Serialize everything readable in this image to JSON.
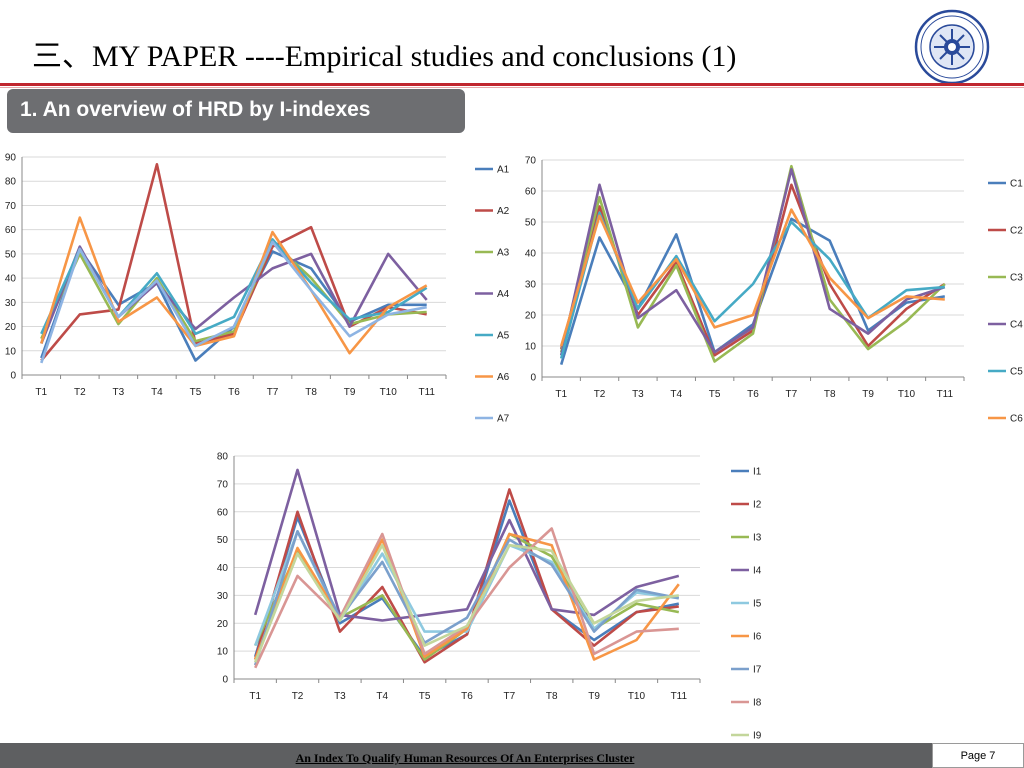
{
  "header": {
    "title": "三、MY PAPER ----Empirical studies and conclusions (1)",
    "subtitle": "1. An overview of HRD by I-indexes",
    "accent_color": "#c0262e",
    "logo_icon": "university-seal-logo"
  },
  "footer": {
    "text": "An Index To Qualify Human Resources Of An Enterprises Cluster",
    "page": "Page 7"
  },
  "chart_data": [
    {
      "type": "line",
      "categories": [
        "T1",
        "T2",
        "T3",
        "T4",
        "T5",
        "T6",
        "T7",
        "T8",
        "T9",
        "T10",
        "T11"
      ],
      "ylim": [
        0,
        90
      ],
      "yticks": [
        0,
        10,
        20,
        30,
        40,
        50,
        60,
        70,
        80,
        90
      ],
      "grid": true,
      "legend": "right",
      "series": [
        {
          "name": "A1",
          "color": "#4a7ebb",
          "values": [
            7,
            52,
            29,
            38,
            6,
            20,
            51,
            44,
            22,
            29,
            29
          ]
        },
        {
          "name": "A2",
          "color": "#be4b48",
          "values": [
            6,
            25,
            27,
            87,
            13,
            17,
            53,
            61,
            20,
            28,
            25
          ]
        },
        {
          "name": "A3",
          "color": "#98b954",
          "values": [
            15,
            50,
            21,
            40,
            14,
            18,
            55,
            40,
            21,
            25,
            26
          ]
        },
        {
          "name": "A4",
          "color": "#7d60a0",
          "values": [
            13,
            53,
            24,
            38,
            19,
            32,
            44,
            50,
            20,
            50,
            31
          ]
        },
        {
          "name": "A5",
          "color": "#46aac5",
          "values": [
            17,
            52,
            24,
            42,
            17,
            24,
            56,
            38,
            23,
            26,
            36
          ]
        },
        {
          "name": "A6",
          "color": "#f79646",
          "values": [
            13,
            65,
            22,
            32,
            12,
            16,
            59,
            35,
            9,
            28,
            37
          ]
        },
        {
          "name": "A7",
          "color": "#8eb4e3",
          "values": [
            5,
            52,
            24,
            39,
            12,
            20,
            55,
            35,
            16,
            25,
            28
          ]
        }
      ]
    },
    {
      "type": "line",
      "categories": [
        "T1",
        "T2",
        "T3",
        "T4",
        "T5",
        "T6",
        "T7",
        "T8",
        "T9",
        "T10",
        "T11"
      ],
      "ylim": [
        0,
        70
      ],
      "yticks": [
        0,
        10,
        20,
        30,
        40,
        50,
        60,
        70
      ],
      "grid": true,
      "legend": "right",
      "series": [
        {
          "name": "C1",
          "color": "#4a7ebb",
          "values": [
            4,
            45,
            22,
            46,
            8,
            17,
            51,
            44,
            15,
            24,
            26
          ]
        },
        {
          "name": "C2",
          "color": "#be4b48",
          "values": [
            9,
            55,
            20,
            37,
            7,
            15,
            62,
            30,
            10,
            22,
            30
          ]
        },
        {
          "name": "C3",
          "color": "#98b954",
          "values": [
            8,
            58,
            16,
            36,
            5,
            14,
            68,
            25,
            9,
            18,
            30
          ]
        },
        {
          "name": "C4",
          "color": "#7d60a0",
          "values": [
            7,
            62,
            19,
            28,
            8,
            16,
            67,
            22,
            14,
            25,
            29
          ]
        },
        {
          "name": "C5",
          "color": "#46aac5",
          "values": [
            6,
            53,
            22,
            39,
            18,
            30,
            50,
            38,
            19,
            28,
            29
          ]
        },
        {
          "name": "C6",
          "color": "#f79646",
          "values": [
            10,
            52,
            24,
            38,
            16,
            20,
            54,
            32,
            19,
            26,
            25
          ]
        }
      ]
    },
    {
      "type": "line",
      "categories": [
        "T1",
        "T2",
        "T3",
        "T4",
        "T5",
        "T6",
        "T7",
        "T8",
        "T9",
        "T10",
        "T11"
      ],
      "ylim": [
        0,
        80
      ],
      "yticks": [
        0,
        10,
        20,
        30,
        40,
        50,
        60,
        70,
        80
      ],
      "grid": true,
      "legend": "right",
      "series": [
        {
          "name": "I1",
          "color": "#4a7ebb",
          "values": [
            8,
            58,
            20,
            29,
            8,
            16,
            64,
            25,
            14,
            24,
            27
          ]
        },
        {
          "name": "I2",
          "color": "#be4b48",
          "values": [
            7,
            60,
            17,
            33,
            6,
            16,
            68,
            25,
            12,
            24,
            26
          ]
        },
        {
          "name": "I3",
          "color": "#98b954",
          "values": [
            12,
            46,
            22,
            30,
            7,
            18,
            52,
            44,
            18,
            27,
            24
          ]
        },
        {
          "name": "I4",
          "color": "#7d60a0",
          "values": [
            23,
            75,
            23,
            21,
            23,
            25,
            57,
            25,
            23,
            33,
            37
          ]
        },
        {
          "name": "I5",
          "color": "#8ec9e0",
          "values": [
            12,
            53,
            21,
            45,
            17,
            17,
            48,
            42,
            18,
            31,
            29
          ]
        },
        {
          "name": "I6",
          "color": "#f79646",
          "values": [
            7,
            47,
            22,
            50,
            8,
            18,
            52,
            48,
            7,
            14,
            34
          ]
        },
        {
          "name": "I7",
          "color": "#7ba0cc",
          "values": [
            5,
            53,
            22,
            42,
            13,
            22,
            50,
            41,
            17,
            32,
            29
          ]
        },
        {
          "name": "I8",
          "color": "#d99694",
          "values": [
            4,
            37,
            22,
            52,
            9,
            19,
            40,
            54,
            9,
            17,
            18
          ]
        },
        {
          "name": "I9",
          "color": "#c3d69b",
          "values": [
            6,
            45,
            21,
            48,
            12,
            19,
            48,
            46,
            20,
            28,
            30
          ]
        }
      ]
    }
  ]
}
